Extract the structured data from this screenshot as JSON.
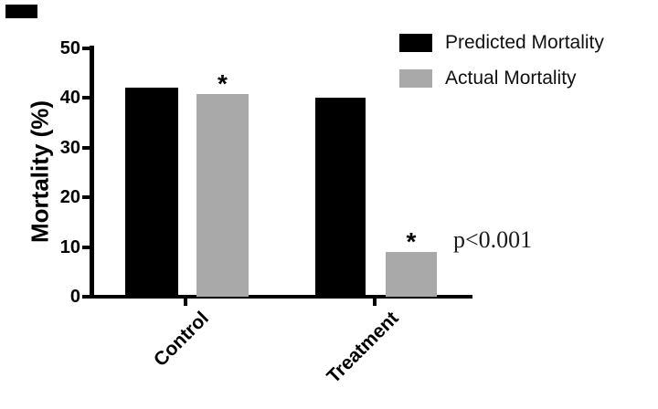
{
  "chart_data": {
    "type": "bar",
    "title": "",
    "categories": [
      "Control",
      "Treatment"
    ],
    "series": [
      {
        "name": "Predicted Mortality",
        "color": "#000000",
        "values": [
          42,
          40
        ]
      },
      {
        "name": "Actual Mortality",
        "color": "#a9a9a9",
        "values": [
          40.7,
          9
        ]
      }
    ],
    "ylabel": "Mortality (%)",
    "yticks": [
      50,
      40,
      30,
      20,
      10,
      0
    ],
    "ylim": [
      0,
      50
    ],
    "grid": false,
    "legend_position": "top-right",
    "annotations": [
      {
        "text": "*",
        "attached_to": "Control group, Actual Mortality bar"
      },
      {
        "text": "*",
        "attached_to": "Treatment group, Actual Mortality bar"
      },
      {
        "text": "p<0.001",
        "attached_to": "Treatment group, right of Actual Mortality bar"
      }
    ]
  },
  "legend": {
    "items": [
      {
        "label": "Predicted Mortality",
        "color": "#000000"
      },
      {
        "label": "Actual Mortality",
        "color": "#a9a9a9"
      }
    ]
  },
  "axis": {
    "ylabel": "Mortality (%)"
  },
  "annotations": {
    "star_control": "*",
    "star_treatment": "*",
    "p_value": "p<0.001"
  }
}
